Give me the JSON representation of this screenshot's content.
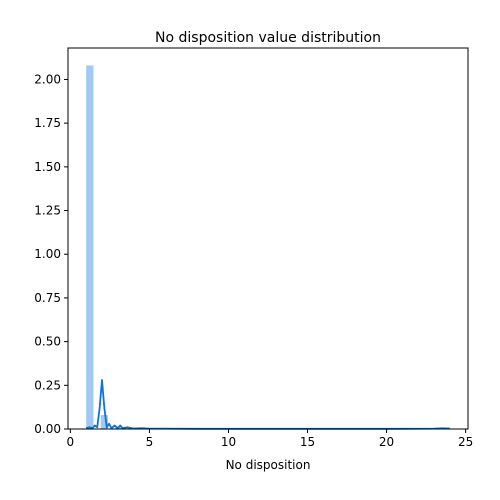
{
  "chart_data": {
    "type": "bar",
    "title": "No disposition value distribution",
    "xlabel": "No disposition",
    "ylabel": "",
    "xlim": [
      -0.15,
      25.15
    ],
    "ylim": [
      0.0,
      2.18
    ],
    "x_ticks": [
      0,
      5,
      10,
      15,
      20,
      25
    ],
    "x_tick_labels": [
      "0",
      "5",
      "10",
      "15",
      "20",
      "25"
    ],
    "y_ticks": [
      0.0,
      0.25,
      0.5,
      0.75,
      1.0,
      1.25,
      1.5,
      1.75,
      2.0
    ],
    "y_tick_labels": [
      "0.00",
      "0.25",
      "0.50",
      "0.75",
      "1.00",
      "1.25",
      "1.50",
      "1.75",
      "2.00"
    ],
    "grid": false,
    "series": [
      {
        "type": "histogram",
        "bin_width": 0.46,
        "bins": [
          {
            "x0": 1.0,
            "x1": 1.46,
            "density": 2.08
          },
          {
            "x0": 1.46,
            "x1": 1.92,
            "density": 0.0
          },
          {
            "x0": 1.92,
            "x1": 2.38,
            "density": 0.08
          },
          {
            "x0": 2.38,
            "x1": 2.84,
            "density": 0.0
          },
          {
            "x0": 2.84,
            "x1": 3.3,
            "density": 0.01
          },
          {
            "x0": 3.3,
            "x1": 3.76,
            "density": 0.0
          },
          {
            "x0": 3.76,
            "x1": 4.22,
            "density": 0.005
          }
        ],
        "color": "#a1c9f4"
      },
      {
        "type": "kde",
        "color": "#0a74da",
        "points": [
          [
            1.0,
            0.005
          ],
          [
            1.2,
            0.01
          ],
          [
            1.4,
            0.005
          ],
          [
            1.55,
            0.02
          ],
          [
            1.7,
            0.01
          ],
          [
            1.85,
            0.12
          ],
          [
            2.0,
            0.28
          ],
          [
            2.15,
            0.12
          ],
          [
            2.3,
            0.01
          ],
          [
            2.45,
            0.03
          ],
          [
            2.6,
            0.005
          ],
          [
            2.8,
            0.02
          ],
          [
            3.0,
            0.005
          ],
          [
            3.15,
            0.02
          ],
          [
            3.3,
            0.005
          ],
          [
            3.6,
            0.01
          ],
          [
            4.0,
            0.003
          ],
          [
            4.5,
            0.005
          ],
          [
            5.0,
            0.002
          ],
          [
            6.0,
            0.002
          ],
          [
            8.0,
            0.001
          ],
          [
            10.0,
            0.001
          ],
          [
            15.0,
            0.001
          ],
          [
            20.0,
            0.001
          ],
          [
            23.0,
            0.002
          ],
          [
            23.5,
            0.004
          ],
          [
            24.0,
            0.003
          ]
        ]
      }
    ]
  }
}
